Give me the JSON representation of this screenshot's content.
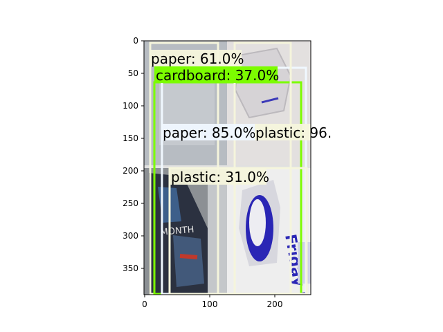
{
  "axes": {
    "x_ticks": [
      "0",
      "100",
      "200"
    ],
    "y_ticks": [
      "0",
      "50",
      "100",
      "150",
      "200",
      "250",
      "300",
      "350"
    ]
  },
  "detections": [
    {
      "label": "paper: 61.0%",
      "color": "#f5f5dc"
    },
    {
      "label": "cardboard: 37.0%",
      "color": "#7cfc00"
    },
    {
      "label": "paper: 85.0%",
      "color": "#f0f8ff"
    },
    {
      "label": "plastic: 96.",
      "color": "#f5f5dc"
    },
    {
      "label": "plastic: 31.0%",
      "color": "#f5f5dc"
    }
  ],
  "photo_text": [
    "MONTH",
    "Friday Bake"
  ]
}
